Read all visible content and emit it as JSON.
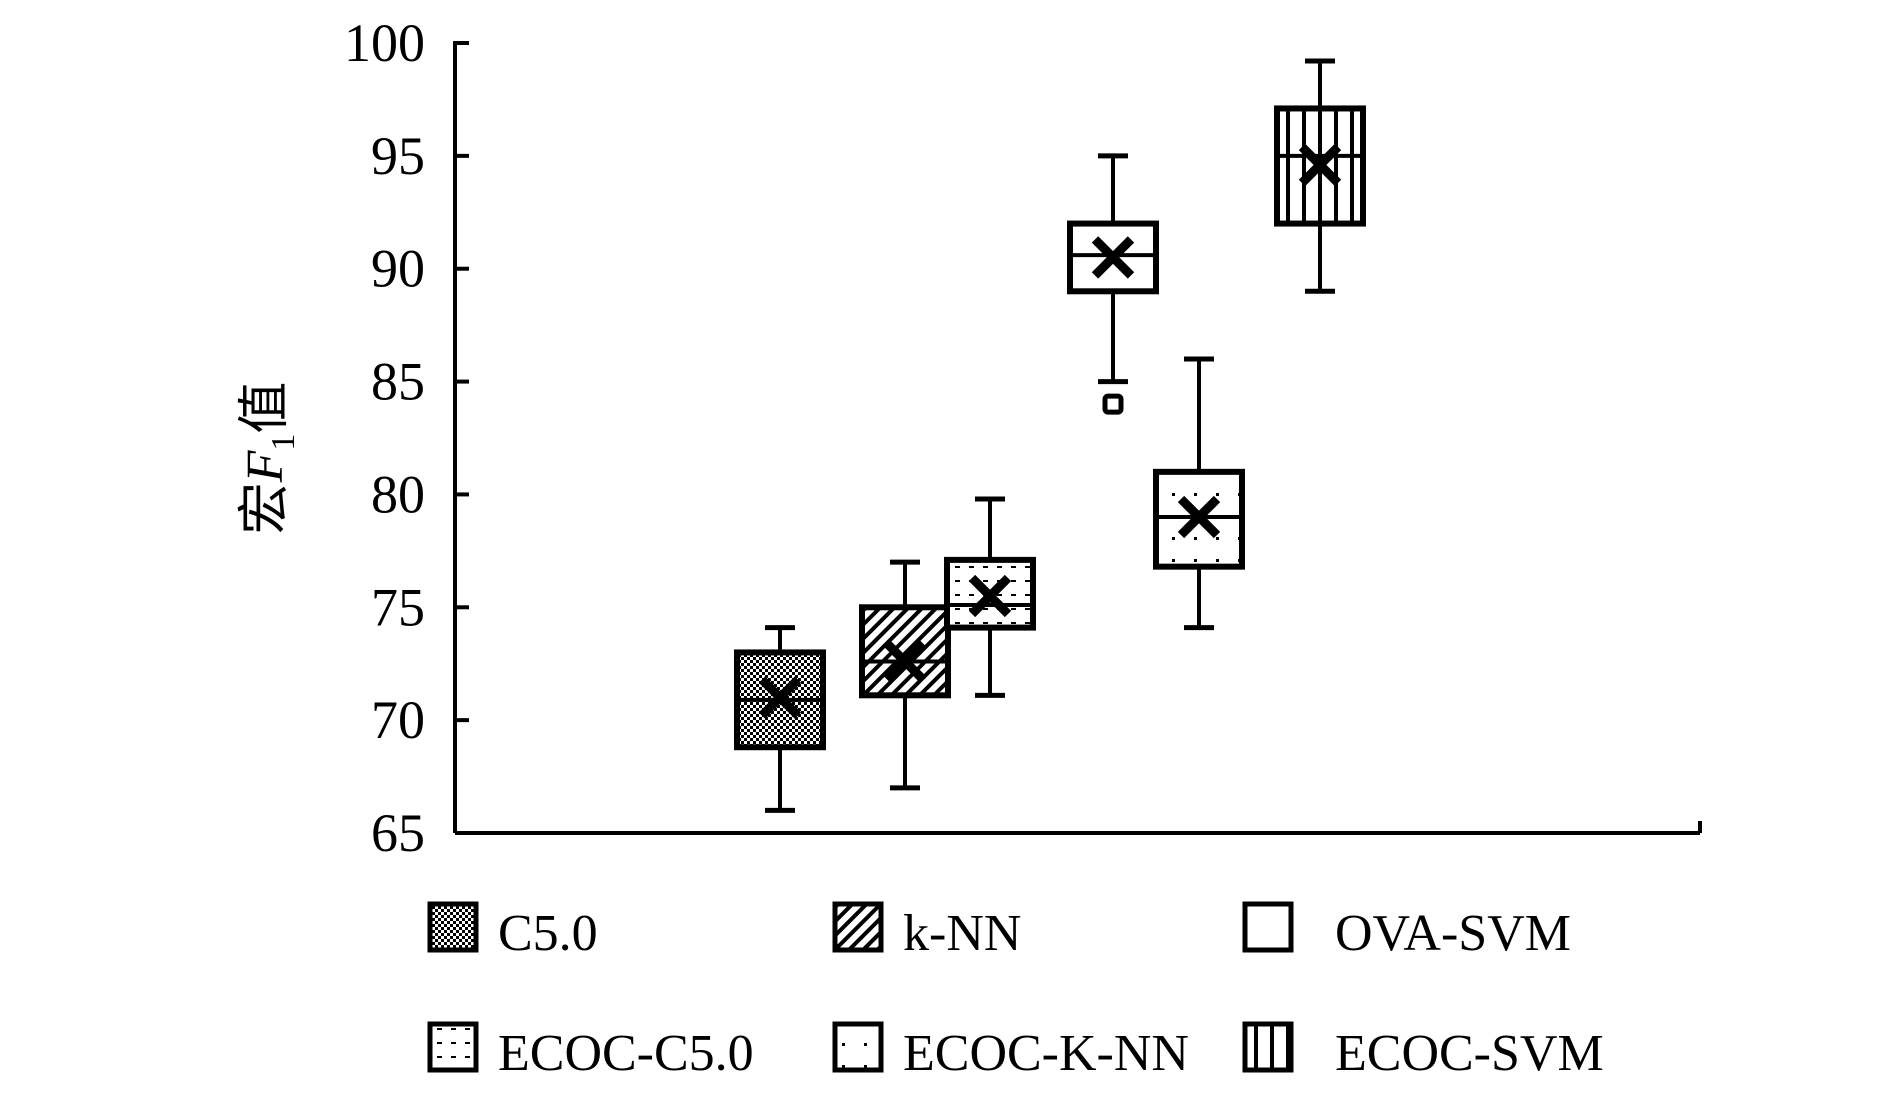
{
  "chart_data": {
    "type": "box",
    "ylabel_parts": [
      "宏",
      "F",
      "1",
      "值"
    ],
    "ylim": [
      65,
      100
    ],
    "yticks": [
      65,
      70,
      75,
      80,
      85,
      90,
      95,
      100
    ],
    "grid": false,
    "legend_position": "bottom",
    "series": [
      {
        "name": "C5.0",
        "pattern": "checker",
        "min": 66,
        "q1": 68.8,
        "median": 70.9,
        "q3": 73,
        "max": 74.1,
        "mean": 71,
        "outliers": []
      },
      {
        "name": "k-NN",
        "pattern": "diagonal",
        "min": 67,
        "q1": 71.1,
        "median": 72.6,
        "q3": 75,
        "max": 77,
        "mean": 72.6,
        "outliers": []
      },
      {
        "name": "ECOC-C5.0",
        "pattern": "dash",
        "min": 71.1,
        "q1": 74.1,
        "median": 75.1,
        "q3": 77.1,
        "max": 79.8,
        "mean": 75.5,
        "outliers": []
      },
      {
        "name": "OVA-SVM",
        "pattern": "empty",
        "min": 85,
        "q1": 89,
        "median": 90.6,
        "q3": 92,
        "max": 95,
        "mean": 90.5,
        "outliers": [
          84
        ]
      },
      {
        "name": "ECOC-K-NN",
        "pattern": "dots",
        "min": 74.1,
        "q1": 76.8,
        "median": 79,
        "q3": 81,
        "max": 86,
        "mean": 79,
        "outliers": []
      },
      {
        "name": "ECOC-SVM",
        "pattern": "vertical",
        "min": 89,
        "q1": 92,
        "median": 95,
        "q3": 97.1,
        "max": 99.2,
        "mean": 94.6,
        "outliers": []
      }
    ],
    "legend_order": [
      "C5.0",
      "k-NN",
      "OVA-SVM",
      "ECOC-C5.0",
      "ECOC-K-NN",
      "ECOC-SVM"
    ]
  }
}
